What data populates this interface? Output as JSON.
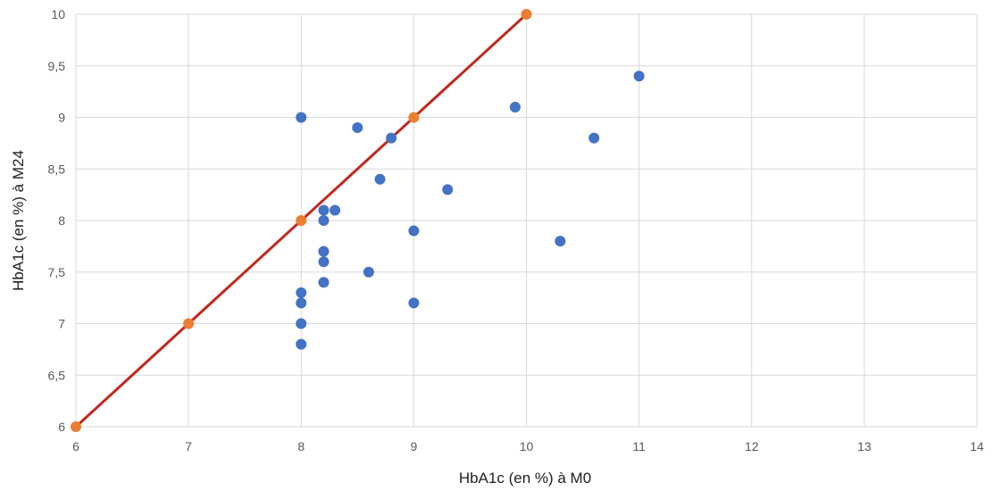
{
  "chart_data": {
    "type": "scatter",
    "title": "",
    "xlabel": "HbA1c (en %) à M0",
    "ylabel": "HbA1c (en %) à M24",
    "xlim": [
      6,
      14
    ],
    "ylim": [
      6,
      10
    ],
    "x_ticks": [
      "6",
      "7",
      "8",
      "9",
      "10",
      "11",
      "12",
      "13",
      "14"
    ],
    "y_ticks": [
      "6",
      "6,5",
      "7",
      "7,5",
      "8",
      "8,5",
      "9",
      "9,5",
      "10"
    ],
    "grid": true,
    "legend": "none",
    "series": [
      {
        "color": "#4472c4",
        "points": [
          [
            8.0,
            9.0
          ],
          [
            8.5,
            8.9
          ],
          [
            8.8,
            8.8
          ],
          [
            8.7,
            8.4
          ],
          [
            8.2,
            8.1
          ],
          [
            8.3,
            8.1
          ],
          [
            8.2,
            8.0
          ],
          [
            8.2,
            7.7
          ],
          [
            8.2,
            7.6
          ],
          [
            8.6,
            7.5
          ],
          [
            8.2,
            7.4
          ],
          [
            8.0,
            7.3
          ],
          [
            8.0,
            7.2
          ],
          [
            8.0,
            7.0
          ],
          [
            8.0,
            6.8
          ],
          [
            9.0,
            7.9
          ],
          [
            9.3,
            8.3
          ],
          [
            9.0,
            7.2
          ],
          [
            9.9,
            9.1
          ],
          [
            11.0,
            9.4
          ],
          [
            10.6,
            8.8
          ],
          [
            10.3,
            7.8
          ]
        ]
      },
      {
        "color": "#ed7d31",
        "line_color": "#c0281e",
        "points": [
          [
            6,
            6
          ],
          [
            7,
            7
          ],
          [
            8,
            8
          ],
          [
            9,
            9
          ],
          [
            10,
            10
          ]
        ]
      }
    ]
  }
}
